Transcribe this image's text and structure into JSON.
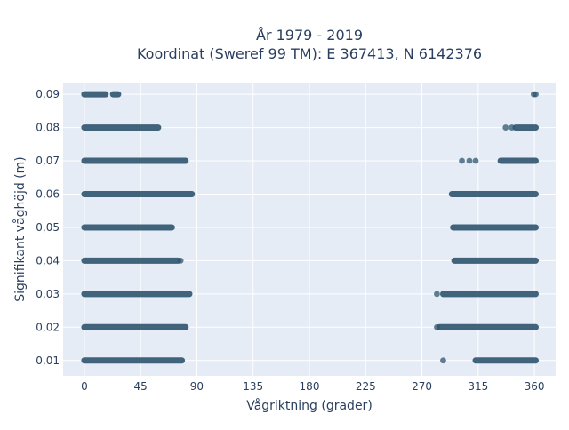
{
  "chart_data": {
    "type": "scatter",
    "title_line1": "År 1979 - 2019",
    "title_line2": "Koordinat (Sweref 99 TM): E 367413, N 6142376",
    "xlabel": "Vågriktning (grader)",
    "ylabel": "Signifikant våghöjd (m)",
    "xlim": [
      -17,
      377
    ],
    "ylim": [
      0.0054,
      0.0935
    ],
    "grid": true,
    "legend": "none",
    "x_ticks": [
      {
        "value": 0,
        "label": "0"
      },
      {
        "value": 45,
        "label": "45"
      },
      {
        "value": 90,
        "label": "90"
      },
      {
        "value": 135,
        "label": "135"
      },
      {
        "value": 180,
        "label": "180"
      },
      {
        "value": 225,
        "label": "225"
      },
      {
        "value": 270,
        "label": "270"
      },
      {
        "value": 315,
        "label": "315"
      },
      {
        "value": 360,
        "label": "360"
      }
    ],
    "y_ticks": [
      {
        "value": 0.01,
        "label": "0,01"
      },
      {
        "value": 0.02,
        "label": "0,02"
      },
      {
        "value": 0.03,
        "label": "0,03"
      },
      {
        "value": 0.04,
        "label": "0,04"
      },
      {
        "value": 0.05,
        "label": "0,05"
      },
      {
        "value": 0.06,
        "label": "0,06"
      },
      {
        "value": 0.07,
        "label": "0,07"
      },
      {
        "value": 0.08,
        "label": "0,08"
      },
      {
        "value": 0.09,
        "label": "0,09"
      }
    ],
    "marker_color": "#2f556e",
    "bands": [
      {
        "y": 0.09,
        "ranges": [
          [
            0,
            17
          ],
          [
            23,
            27
          ]
        ],
        "points": [
          359.5,
          361
        ]
      },
      {
        "y": 0.08,
        "ranges": [
          [
            0,
            59
          ],
          [
            345,
            361
          ]
        ],
        "points": [
          337,
          342
        ]
      },
      {
        "y": 0.07,
        "ranges": [
          [
            0,
            81
          ],
          [
            333,
            361
          ]
        ],
        "points": [
          302,
          308,
          313
        ]
      },
      {
        "y": 0.06,
        "ranges": [
          [
            0,
            86
          ],
          [
            294,
            361
          ]
        ],
        "points": []
      },
      {
        "y": 0.05,
        "ranges": [
          [
            0,
            70
          ],
          [
            295,
            361
          ]
        ],
        "points": []
      },
      {
        "y": 0.04,
        "ranges": [
          [
            0,
            75
          ],
          [
            296,
            361
          ]
        ],
        "points": [
          77
        ]
      },
      {
        "y": 0.03,
        "ranges": [
          [
            0,
            84
          ],
          [
            287,
            361
          ]
        ],
        "points": [
          282
        ]
      },
      {
        "y": 0.02,
        "ranges": [
          [
            0,
            81
          ],
          [
            284,
            361
          ]
        ],
        "points": [
          282
        ]
      },
      {
        "y": 0.01,
        "ranges": [
          [
            0,
            78
          ],
          [
            313,
            361
          ]
        ],
        "points": [
          287
        ]
      }
    ]
  }
}
